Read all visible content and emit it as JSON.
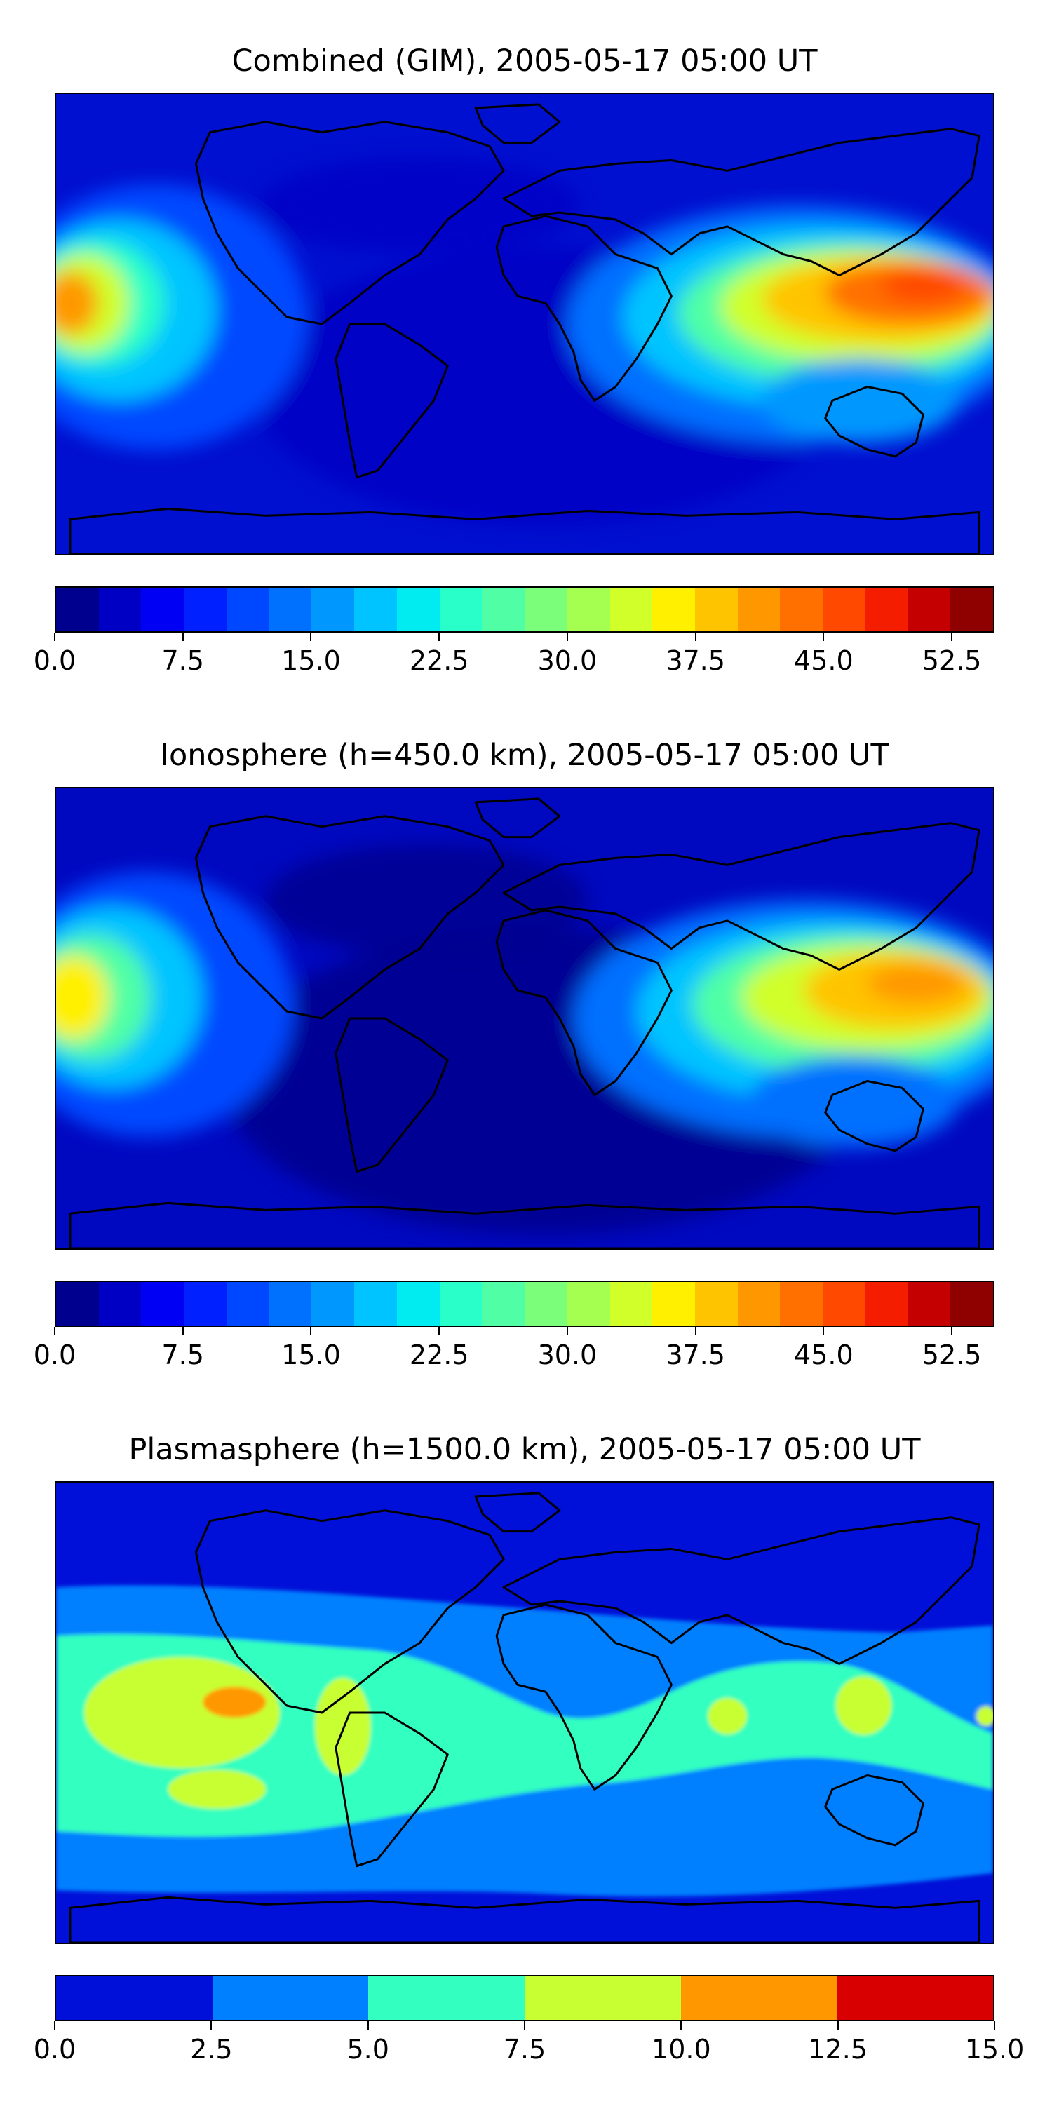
{
  "panels": [
    {
      "title": "Combined (GIM), 2005-05-17 05:00 UT",
      "colorbar": {
        "colors": [
          "#00008f",
          "#0000c4",
          "#0000f5",
          "#0020ff",
          "#0048ff",
          "#0070ff",
          "#0098ff",
          "#00c4ff",
          "#00ecf0",
          "#29ffc8",
          "#50ffa5",
          "#7bff7b",
          "#a5ff50",
          "#d0ff29",
          "#fff000",
          "#ffc400",
          "#ff9800",
          "#ff7000",
          "#ff4800",
          "#f51d00",
          "#c40000",
          "#8f0000"
        ],
        "tick_labels": [
          "0.0",
          "7.5",
          "15.0",
          "22.5",
          "30.0",
          "37.5",
          "45.0",
          "52.5"
        ],
        "tick_values": [
          0,
          7.5,
          15,
          22.5,
          30,
          37.5,
          45,
          52.5
        ],
        "range": [
          0,
          55
        ]
      }
    },
    {
      "title": "Ionosphere  (h=450.0 km), 2005-05-17 05:00 UT",
      "colorbar": {
        "colors": [
          "#00008f",
          "#0000c4",
          "#0000f5",
          "#0020ff",
          "#0048ff",
          "#0070ff",
          "#0098ff",
          "#00c4ff",
          "#00ecf0",
          "#29ffc8",
          "#50ffa5",
          "#7bff7b",
          "#a5ff50",
          "#d0ff29",
          "#fff000",
          "#ffc400",
          "#ff9800",
          "#ff7000",
          "#ff4800",
          "#f51d00",
          "#c40000",
          "#8f0000"
        ],
        "tick_labels": [
          "0.0",
          "7.5",
          "15.0",
          "22.5",
          "30.0",
          "37.5",
          "45.0",
          "52.5"
        ],
        "tick_values": [
          0,
          7.5,
          15,
          22.5,
          30,
          37.5,
          45,
          52.5
        ],
        "range": [
          0,
          55
        ]
      }
    },
    {
      "title": "Plasmasphere (h=1500.0 km), 2005-05-17 05:00 UT",
      "colorbar": {
        "colors": [
          "#0010d8",
          "#0080ff",
          "#33ffc0",
          "#c8ff33",
          "#ff9800",
          "#d80000"
        ],
        "tick_labels": [
          "0.0",
          "2.5",
          "5.0",
          "7.5",
          "10.0",
          "12.5",
          "15.0"
        ],
        "tick_values": [
          0,
          2.5,
          5,
          7.5,
          10,
          12.5,
          15
        ],
        "range": [
          0,
          15
        ]
      }
    }
  ]
}
